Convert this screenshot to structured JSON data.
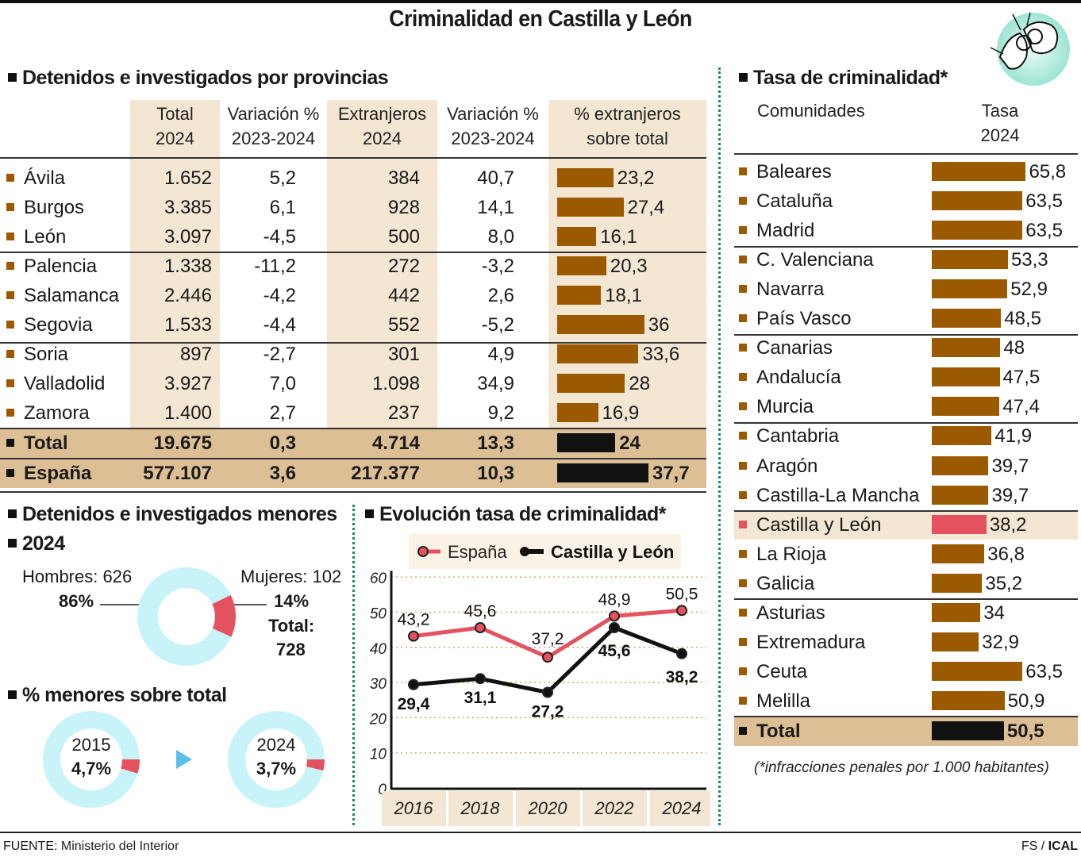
{
  "title": "Criminalidad en Castilla y León",
  "provincias": {
    "heading": "Detenidos e investigados por provincias",
    "columns": [
      {
        "line1": "Total",
        "line2": "2024"
      },
      {
        "line1": "Variación %",
        "line2": "2023-2024"
      },
      {
        "line1": "Extranjeros",
        "line2": "2024"
      },
      {
        "line1": "Variación %",
        "line2": "2023-2024"
      },
      {
        "line1": "% extranjeros",
        "line2": "sobre total"
      }
    ],
    "rows": [
      {
        "name": "Ávila",
        "total": "1.652",
        "var": "5,2",
        "extranjeros": "384",
        "var_ext": "40,7",
        "pct_ext": 23.2,
        "pct_label": "23,2"
      },
      {
        "name": "Burgos",
        "total": "3.385",
        "var": "6,1",
        "extranjeros": "928",
        "var_ext": "14,1",
        "pct_ext": 27.4,
        "pct_label": "27,4"
      },
      {
        "name": "León",
        "total": "3.097",
        "var": "-4,5",
        "extranjeros": "500",
        "var_ext": "8,0",
        "pct_ext": 16.1,
        "pct_label": "16,1"
      },
      {
        "name": "Palencia",
        "total": "1.338",
        "var": "-11,2",
        "extranjeros": "272",
        "var_ext": "-3,2",
        "pct_ext": 20.3,
        "pct_label": "20,3"
      },
      {
        "name": "Salamanca",
        "total": "2.446",
        "var": "-4,2",
        "extranjeros": "442",
        "var_ext": "2,6",
        "pct_ext": 18.1,
        "pct_label": "18,1"
      },
      {
        "name": "Segovia",
        "total": "1.533",
        "var": "-4,4",
        "extranjeros": "552",
        "var_ext": "-5,2",
        "pct_ext": 36,
        "pct_label": "36"
      },
      {
        "name": "Soria",
        "total": "897",
        "var": "-2,7",
        "extranjeros": "301",
        "var_ext": "4,9",
        "pct_ext": 33.6,
        "pct_label": "33,6"
      },
      {
        "name": "Valladolid",
        "total": "3.927",
        "var": "7,0",
        "extranjeros": "1.098",
        "var_ext": "34,9",
        "pct_ext": 28,
        "pct_label": "28"
      },
      {
        "name": "Zamora",
        "total": "1.400",
        "var": "2,7",
        "extranjeros": "237",
        "var_ext": "9,2",
        "pct_ext": 16.9,
        "pct_label": "16,9"
      }
    ],
    "summary_rows": [
      {
        "name": "Total",
        "total": "19.675",
        "var": "0,3",
        "extranjeros": "4.714",
        "var_ext": "13,3",
        "pct_ext": 24,
        "pct_label": "24"
      },
      {
        "name": "España",
        "total": "577.107",
        "var": "3,6",
        "extranjeros": "217.377",
        "var_ext": "10,3",
        "pct_ext": 37.7,
        "pct_label": "37,7"
      }
    ]
  },
  "tasa": {
    "heading": "Tasa de criminalidad*",
    "col_name": "Comunidades",
    "col_value_line1": "Tasa",
    "col_value_line2": "2024",
    "rows": [
      {
        "name": "Baleares",
        "value": 65.8,
        "label": "65,8"
      },
      {
        "name": "Cataluña",
        "value": 63.5,
        "label": "63,5"
      },
      {
        "name": "Madrid",
        "value": 63.5,
        "label": "63,5"
      },
      {
        "name": "C. Valenciana",
        "value": 53.3,
        "label": "53,3"
      },
      {
        "name": "Navarra",
        "value": 52.9,
        "label": "52,9"
      },
      {
        "name": "País Vasco",
        "value": 48.5,
        "label": "48,5"
      },
      {
        "name": "Canarias",
        "value": 48,
        "label": "48"
      },
      {
        "name": "Andalucía",
        "value": 47.5,
        "label": "47,5"
      },
      {
        "name": "Murcia",
        "value": 47.4,
        "label": "47,4"
      },
      {
        "name": "Cantabria",
        "value": 41.9,
        "label": "41,9"
      },
      {
        "name": "Aragón",
        "value": 39.7,
        "label": "39,7"
      },
      {
        "name": "Castilla-La Mancha",
        "value": 39.7,
        "label": "39,7"
      },
      {
        "name": "Castilla y León",
        "value": 38.2,
        "label": "38,2",
        "highlight": true
      },
      {
        "name": "La Rioja",
        "value": 36.8,
        "label": "36,8"
      },
      {
        "name": "Galicia",
        "value": 35.2,
        "label": "35,2"
      },
      {
        "name": "Asturias",
        "value": 34,
        "label": "34"
      },
      {
        "name": "Extremadura",
        "value": 32.9,
        "label": "32,9"
      },
      {
        "name": "Ceuta",
        "value": 63.5,
        "label": "63,5"
      },
      {
        "name": "Melilla",
        "value": 50.9,
        "label": "50,9"
      }
    ],
    "total": {
      "name": "Total",
      "value": 50.5,
      "label": "50,5"
    },
    "footnote": "(*infracciones penales por 1.000 habitantes)"
  },
  "menores": {
    "heading": "Detenidos e investigados menores",
    "subheading": "2024",
    "hombres_label": "Hombres: 626",
    "hombres_pct": "86%",
    "mujeres_label": "Mujeres: 102",
    "mujeres_pct": "14%",
    "total_label": "Total:",
    "total_value": "728",
    "pct_heading": "% menores sobre total",
    "pct_2015_year": "2015",
    "pct_2015_value": "4,7%",
    "pct_2024_year": "2024",
    "pct_2024_value": "3,7%"
  },
  "evolucion": {
    "heading": "Evolución tasa de criminalidad*"
  },
  "colors": {
    "bar": "#9c5a00",
    "highlight_bar": "#e5525f",
    "espana": "#e5525f",
    "castilla": "#111111",
    "donut_base": "#c8f3f9",
    "donut_accent": "#e5525f",
    "beige": "#f3e6d2",
    "total_row": "#dcbf94",
    "divider": "#1a8a5a"
  },
  "chart_data": [
    {
      "type": "line",
      "title": "Evolución tasa de criminalidad*",
      "x": [
        "2016",
        "2018",
        "2020",
        "2022",
        "2024"
      ],
      "ylim": [
        0,
        60
      ],
      "yticks": [
        "0",
        "10",
        "20",
        "30",
        "40",
        "50",
        "60"
      ],
      "grid": true,
      "legend": "top",
      "series": [
        {
          "name": "España",
          "values": [
            43.2,
            45.6,
            37.2,
            48.9,
            50.5
          ],
          "labels": [
            "43,2",
            "45,6",
            "37,2",
            "48,9",
            "50,5"
          ],
          "color": "#e5525f"
        },
        {
          "name": "Castilla y León",
          "values": [
            29.4,
            31.1,
            27.2,
            45.6,
            38.2
          ],
          "labels": [
            "29,4",
            "31,1",
            "27,2",
            "45,6",
            "38,2"
          ],
          "color": "#111111"
        }
      ]
    },
    {
      "type": "pie",
      "title": "2024",
      "categories": [
        "Hombres",
        "Mujeres"
      ],
      "values": [
        626,
        102
      ],
      "percent": [
        86,
        14
      ]
    },
    {
      "type": "pie",
      "categories": [
        "2015"
      ],
      "values": [
        4.7
      ]
    },
    {
      "type": "pie",
      "categories": [
        "2024"
      ],
      "values": [
        3.7
      ]
    }
  ],
  "footer": {
    "source": "FUENTE: Ministerio del Interior",
    "credit_prefix": "FS / ",
    "credit_agency": "ICAL"
  }
}
